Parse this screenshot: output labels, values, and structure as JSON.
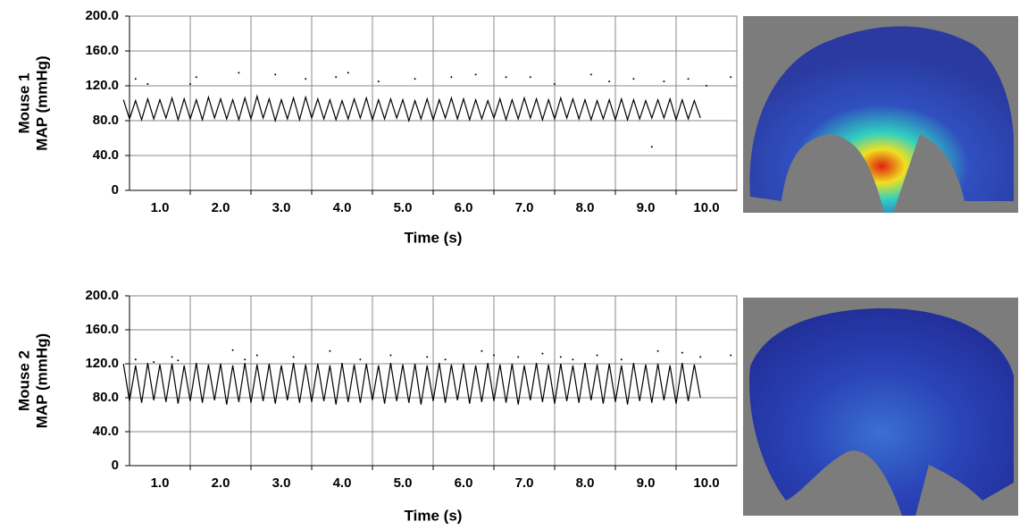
{
  "chart_data": [
    {
      "type": "line",
      "ylabel": [
        "Mouse 1",
        "MAP (mmHg)"
      ],
      "xlabel": "Time (s)",
      "xlim": [
        0.5,
        10.5
      ],
      "ylim": [
        0,
        200
      ],
      "xticks": [
        {
          "value": 1,
          "label": "1.0"
        },
        {
          "value": 2,
          "label": "2.0"
        },
        {
          "value": 3,
          "label": "3.0"
        },
        {
          "value": 4,
          "label": "4.0"
        },
        {
          "value": 5,
          "label": "5.0"
        },
        {
          "value": 6,
          "label": "6.0"
        },
        {
          "value": 7,
          "label": "7.0"
        },
        {
          "value": 8,
          "label": "8.0"
        },
        {
          "value": 9,
          "label": "9.0"
        },
        {
          "value": 10,
          "label": "10.0"
        }
      ],
      "yticks": [
        0,
        {
          "value": 40,
          "label": "40.0"
        },
        {
          "value": 80,
          "label": "80.0"
        },
        {
          "value": 120,
          "label": "120.0"
        },
        {
          "value": 160,
          "label": "160.0"
        },
        {
          "value": 200,
          "label": "200.0"
        }
      ],
      "grid": true,
      "series": [
        {
          "color": "#000000",
          "style": "line",
          "x": [
            0.4,
            0.5,
            0.6,
            0.7,
            0.8,
            0.9,
            1.0,
            1.1,
            1.2,
            1.3,
            1.4,
            1.5,
            1.6,
            1.7,
            1.8,
            1.9,
            2.0,
            2.1,
            2.2,
            2.3,
            2.4,
            2.5,
            2.6,
            2.7,
            2.8,
            2.9,
            3.0,
            3.1,
            3.2,
            3.3,
            3.4,
            3.5,
            3.6,
            3.7,
            3.8,
            3.9,
            4.0,
            4.1,
            4.2,
            4.3,
            4.4,
            4.5,
            4.6,
            4.7,
            4.8,
            4.9,
            5.0,
            5.1,
            5.2,
            5.3,
            5.4,
            5.5,
            5.6,
            5.7,
            5.8,
            5.9,
            6.0,
            6.1,
            6.2,
            6.3,
            6.4,
            6.5,
            6.6,
            6.7,
            6.8,
            6.9,
            7.0,
            7.1,
            7.2,
            7.3,
            7.4,
            7.5,
            7.6,
            7.7,
            7.8,
            7.9,
            8.0,
            8.1,
            8.2,
            8.3,
            8.4,
            8.5,
            8.6,
            8.7,
            8.8,
            8.9,
            9.0,
            9.1,
            9.2,
            9.3,
            9.4,
            9.5,
            9.6,
            9.7,
            9.8,
            9.9
          ],
          "values": [
            104,
            82,
            103,
            81,
            105,
            82,
            104,
            83,
            106,
            81,
            105,
            82,
            104,
            81,
            107,
            83,
            105,
            82,
            104,
            81,
            106,
            82,
            108,
            83,
            105,
            80,
            104,
            82,
            106,
            81,
            107,
            83,
            105,
            82,
            104,
            81,
            103,
            82,
            105,
            83,
            106,
            81,
            104,
            82,
            105,
            83,
            104,
            80,
            103,
            82,
            105,
            81,
            104,
            83,
            106,
            82,
            105,
            81,
            104,
            82,
            103,
            83,
            105,
            81,
            104,
            82,
            106,
            83,
            105,
            81,
            104,
            82,
            106,
            83,
            105,
            82,
            104,
            81,
            103,
            82,
            104,
            81,
            105,
            81,
            104,
            82,
            103,
            83,
            104,
            83,
            105,
            81,
            104,
            82,
            103,
            83
          ]
        },
        {
          "color": "#000000",
          "style": "dots",
          "x": [
            0.6,
            0.8,
            1.5,
            1.6,
            2.3,
            2.9,
            3.4,
            3.9,
            4.1,
            4.6,
            5.2,
            5.8,
            6.2,
            6.7,
            7.1,
            7.5,
            8.1,
            8.4,
            8.8,
            9.1,
            9.3,
            9.7,
            10.0,
            10.4
          ],
          "values": [
            128,
            122,
            122,
            130,
            135,
            133,
            128,
            130,
            135,
            125,
            128,
            130,
            133,
            130,
            130,
            122,
            133,
            125,
            128,
            50,
            125,
            128,
            120,
            130
          ]
        }
      ]
    },
    {
      "type": "line",
      "ylabel": [
        "Mouse 2",
        "MAP (mmHg)"
      ],
      "xlabel": "Time (s)",
      "xlim": [
        0.5,
        10.5
      ],
      "ylim": [
        0,
        200
      ],
      "xticks": [
        {
          "value": 1,
          "label": "1.0"
        },
        {
          "value": 2,
          "label": "2.0"
        },
        {
          "value": 3,
          "label": "3.0"
        },
        {
          "value": 4,
          "label": "4.0"
        },
        {
          "value": 5,
          "label": "5.0"
        },
        {
          "value": 6,
          "label": "6.0"
        },
        {
          "value": 7,
          "label": "7.0"
        },
        {
          "value": 8,
          "label": "8.0"
        },
        {
          "value": 9,
          "label": "9.0"
        },
        {
          "value": 10,
          "label": "10.0"
        }
      ],
      "yticks": [
        0,
        {
          "value": 40,
          "label": "40.0"
        },
        {
          "value": 80,
          "label": "80.0"
        },
        {
          "value": 120,
          "label": "120.0"
        },
        {
          "value": 160,
          "label": "160.0"
        },
        {
          "value": 200,
          "label": "200.0"
        }
      ],
      "grid": true,
      "series": [
        {
          "color": "#000000",
          "style": "line",
          "x": [
            0.4,
            0.5,
            0.6,
            0.7,
            0.8,
            0.9,
            1.0,
            1.1,
            1.2,
            1.3,
            1.4,
            1.5,
            1.6,
            1.7,
            1.8,
            1.9,
            2.0,
            2.1,
            2.2,
            2.3,
            2.4,
            2.5,
            2.6,
            2.7,
            2.8,
            2.9,
            3.0,
            3.1,
            3.2,
            3.3,
            3.4,
            3.5,
            3.6,
            3.7,
            3.8,
            3.9,
            4.0,
            4.1,
            4.2,
            4.3,
            4.4,
            4.5,
            4.6,
            4.7,
            4.8,
            4.9,
            5.0,
            5.1,
            5.2,
            5.3,
            5.4,
            5.5,
            5.6,
            5.7,
            5.8,
            5.9,
            6.0,
            6.1,
            6.2,
            6.3,
            6.4,
            6.5,
            6.6,
            6.7,
            6.8,
            6.9,
            7.0,
            7.1,
            7.2,
            7.3,
            7.4,
            7.5,
            7.6,
            7.7,
            7.8,
            7.9,
            8.0,
            8.1,
            8.2,
            8.3,
            8.4,
            8.5,
            8.6,
            8.7,
            8.8,
            8.9,
            9.0,
            9.1,
            9.2,
            9.3,
            9.4,
            9.5,
            9.6,
            9.7,
            9.8,
            9.9
          ],
          "values": [
            120,
            76,
            118,
            74,
            121,
            77,
            119,
            75,
            120,
            73,
            118,
            76,
            121,
            74,
            119,
            77,
            120,
            72,
            118,
            75,
            121,
            74,
            119,
            76,
            120,
            73,
            118,
            77,
            121,
            74,
            119,
            75,
            120,
            76,
            118,
            72,
            121,
            75,
            119,
            74,
            120,
            77,
            118,
            73,
            121,
            76,
            119,
            74,
            120,
            72,
            118,
            76,
            121,
            74,
            119,
            77,
            120,
            73,
            118,
            75,
            121,
            76,
            119,
            74,
            120,
            72,
            118,
            77,
            121,
            75,
            119,
            73,
            120,
            76,
            118,
            74,
            121,
            77,
            119,
            73,
            120,
            75,
            118,
            72,
            121,
            76,
            119,
            74,
            120,
            77,
            118,
            73,
            121,
            76,
            119,
            80
          ]
        },
        {
          "color": "#000000",
          "style": "dots",
          "x": [
            0.6,
            0.9,
            1.2,
            1.3,
            2.2,
            2.4,
            2.6,
            3.2,
            3.8,
            4.3,
            4.8,
            5.4,
            5.7,
            6.3,
            6.5,
            6.9,
            7.3,
            7.6,
            7.8,
            8.2,
            8.6,
            9.2,
            9.6,
            9.9,
            10.4
          ],
          "values": [
            125,
            122,
            128,
            124,
            136,
            125,
            130,
            128,
            135,
            125,
            130,
            128,
            125,
            135,
            130,
            128,
            132,
            128,
            125,
            130,
            125,
            135,
            133,
            128,
            130
          ]
        }
      ]
    }
  ]
}
